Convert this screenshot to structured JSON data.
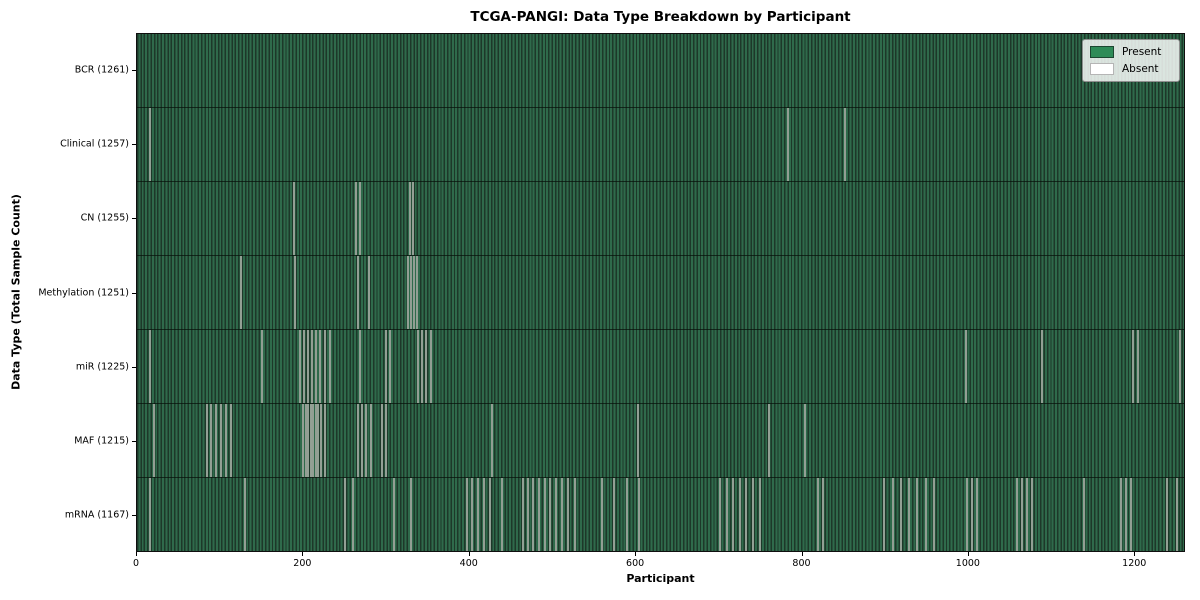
{
  "chart_data": {
    "type": "heatmap",
    "title": "TCGA-PANGI: Data Type Breakdown by Participant",
    "xlabel": "Participant",
    "ylabel": "Data Type (Total Sample Count)",
    "x_ticks": [
      0,
      200,
      400,
      600,
      800,
      1000,
      1200
    ],
    "x_range": [
      0,
      1261
    ],
    "grid": false,
    "legend_position": "upper right",
    "legend": [
      {
        "label": "Present",
        "color": "#2E8B57"
      },
      {
        "label": "Absent",
        "color": "#FFFFFF"
      }
    ],
    "colors": {
      "present": "#2E8B57",
      "absent": "#FFFFFF",
      "stripe_dark": "#1D3829",
      "stripe_light": "#2F6A4B",
      "absent_line": "#99A399",
      "legend_border": "#8F8F8F"
    },
    "rows": [
      {
        "data_type": "BCR",
        "label": "BCR (1261)",
        "total_samples": 1261,
        "absent_participants": []
      },
      {
        "data_type": "Clinical",
        "label": "Clinical (1257)",
        "total_samples": 1257,
        "absent_participants": [
          16,
          784,
          853
        ]
      },
      {
        "data_type": "CN",
        "label": "CN (1255)",
        "total_samples": 1255,
        "absent_participants": [
          189,
          264,
          268,
          329,
          333
        ]
      },
      {
        "data_type": "Methylation",
        "label": "Methylation (1251)",
        "total_samples": 1251,
        "absent_participants": [
          125,
          190,
          266,
          279,
          326,
          330,
          334,
          337
        ]
      },
      {
        "data_type": "miR",
        "label": "miR (1225)",
        "total_samples": 1225,
        "absent_participants": [
          16,
          150,
          196,
          201,
          206,
          211,
          216,
          221,
          226,
          232,
          269,
          300,
          305,
          338,
          343,
          348,
          354,
          998,
          1090,
          1200,
          1205,
          1256
        ]
      },
      {
        "data_type": "MAF",
        "label": "MAF (1215)",
        "total_samples": 1215,
        "absent_participants": [
          20,
          84,
          89,
          95,
          101,
          107,
          113,
          200,
          203,
          206,
          209,
          212,
          215,
          218,
          222,
          226,
          266,
          271,
          276,
          282,
          295,
          300,
          427,
          603,
          761,
          805
        ]
      },
      {
        "data_type": "mRNA",
        "label": "mRNA (1167)",
        "total_samples": 1167,
        "absent_participants": [
          16,
          130,
          250,
          260,
          310,
          330,
          397,
          404,
          411,
          418,
          425,
          440,
          465,
          471,
          477,
          484,
          491,
          498,
          505,
          512,
          519,
          527,
          560,
          575,
          590,
          605,
          702,
          710,
          718,
          726,
          734,
          742,
          750,
          820,
          826,
          900,
          910,
          920,
          930,
          940,
          950,
          960,
          1000,
          1006,
          1012,
          1060,
          1066,
          1072,
          1078,
          1140,
          1185,
          1191,
          1197,
          1240,
          1252
        ]
      }
    ]
  }
}
